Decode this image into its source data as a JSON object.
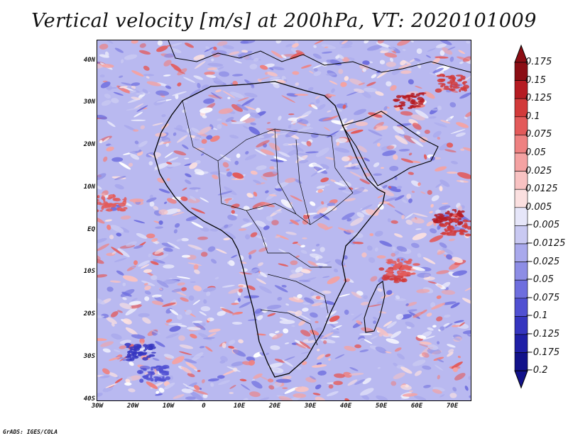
{
  "title": "Vertical velocity [m/s] at 200hPa, VT: 2020101009",
  "footer": "GrADS: IGES/COLA",
  "map": {
    "lat_labels": [
      "40N",
      "30N",
      "20N",
      "10N",
      "EQ",
      "10S",
      "20S",
      "30S",
      "40S"
    ],
    "lon_labels": [
      "30W",
      "20W",
      "10W",
      "0",
      "10E",
      "20E",
      "30E",
      "40E",
      "50E",
      "60E",
      "70E"
    ]
  },
  "colorbar": {
    "levels": [
      {
        "label": "0.175",
        "color": "#8b0d14"
      },
      {
        "label": "0.15",
        "color": "#b51b22"
      },
      {
        "label": "0.125",
        "color": "#d23a3a"
      },
      {
        "label": "0.1",
        "color": "#e35a5a"
      },
      {
        "label": "0.075",
        "color": "#ee8181"
      },
      {
        "label": "0.05",
        "color": "#f4a2a2"
      },
      {
        "label": "0.025",
        "color": "#f8c2c2"
      },
      {
        "label": "0.0125",
        "color": "#fbe0e0"
      },
      {
        "label": "0.005",
        "color": "#ffffff"
      },
      {
        "label": "−0.005",
        "color": "#e6e6f9"
      },
      {
        "label": "−0.0125",
        "color": "#c9c9f2"
      },
      {
        "label": "−0.025",
        "color": "#a9a9ec"
      },
      {
        "label": "−0.05",
        "color": "#8d8de5"
      },
      {
        "label": "−0.075",
        "color": "#6e6ede"
      },
      {
        "label": "−0.1",
        "color": "#5050d2"
      },
      {
        "label": "−0.125",
        "color": "#3535bf"
      },
      {
        "label": "−0.175",
        "color": "#1f1fa6"
      },
      {
        "label": "−0.2",
        "color": "#12128a"
      }
    ]
  }
}
